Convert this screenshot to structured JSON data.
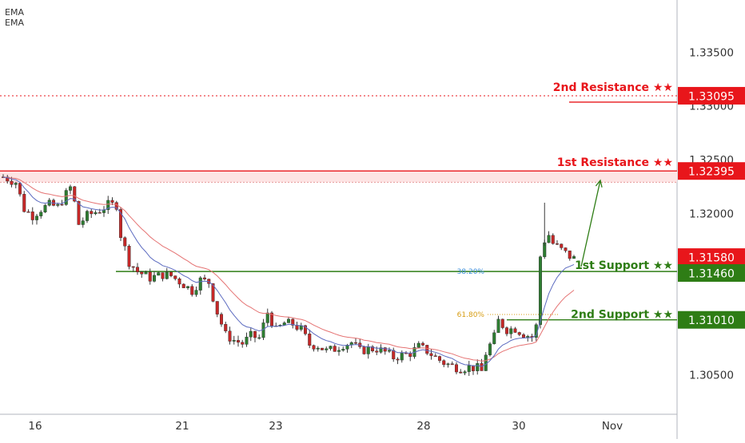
{
  "legend": {
    "indicator_1": "EMA",
    "indicator_2": "EMA"
  },
  "chart_data": {
    "type": "candlestick",
    "y_axis": {
      "range": [
        1.3031,
        1.338
      ],
      "tick_labels": [
        "1.33500",
        "1.33000",
        "1.32500",
        "1.32000",
        "1.31500",
        "1.31000",
        "1.30500"
      ],
      "tick_values": [
        1.335,
        1.33,
        1.325,
        1.32,
        1.315,
        1.31,
        1.305
      ]
    },
    "x_axis": {
      "tick_labels": [
        "16",
        "21",
        "23",
        "28",
        "30",
        "Nov"
      ]
    },
    "levels": [
      {
        "label": "2nd Resistance ★★",
        "price_label": "1.33095",
        "value": 1.33095,
        "color": "#e8161b",
        "style": "dotted"
      },
      {
        "label": "1st Resistance ★★",
        "price_label": "1.32395",
        "value": 1.32395,
        "color": "#e8161b",
        "style": "solid"
      },
      {
        "label": "1st Support ★★",
        "price_label": "1.31460",
        "value": 1.3146,
        "color": "#2e7d15",
        "style": "solid"
      },
      {
        "label": "2nd Support ★★",
        "price_label": "1.31010",
        "value": 1.3101,
        "color": "#2e7d15",
        "style": "solid"
      }
    ],
    "current_price": {
      "label": "1.31580",
      "value": 1.3158,
      "color": "#e8161b"
    },
    "fibonacci": [
      {
        "label": "38.20%",
        "value": 1.3146,
        "color": "#3b8ed8"
      },
      {
        "label": "61.80%",
        "value": 1.3106,
        "color": "#d79d13"
      }
    ],
    "resistance_zone": {
      "top": 1.32395,
      "bottom": 1.3229
    },
    "price_path": [
      [
        0,
        1.3234
      ],
      [
        3,
        1.3229
      ],
      [
        5,
        1.3204
      ],
      [
        7,
        1.3198
      ],
      [
        9,
        1.3204
      ],
      [
        11,
        1.3208
      ],
      [
        13,
        1.3206
      ],
      [
        15,
        1.3218
      ],
      [
        16,
        1.3224
      ],
      [
        17,
        1.321
      ],
      [
        18,
        1.319
      ],
      [
        20,
        1.3198
      ],
      [
        23,
        1.3203
      ],
      [
        25,
        1.3208
      ],
      [
        27,
        1.3208
      ],
      [
        28,
        1.318
      ],
      [
        30,
        1.3155
      ],
      [
        32,
        1.3146
      ],
      [
        35,
        1.314
      ],
      [
        38,
        1.3143
      ],
      [
        40,
        1.3142
      ],
      [
        43,
        1.3134
      ],
      [
        45,
        1.3128
      ],
      [
        47,
        1.3138
      ],
      [
        49,
        1.3136
      ],
      [
        51,
        1.3108
      ],
      [
        53,
        1.3087
      ],
      [
        55,
        1.3082
      ],
      [
        57,
        1.3079
      ],
      [
        59,
        1.3086
      ],
      [
        61,
        1.3084
      ],
      [
        63,
        1.3108
      ],
      [
        65,
        1.3091
      ],
      [
        67,
        1.3098
      ],
      [
        69,
        1.3097
      ],
      [
        71,
        1.3092
      ],
      [
        73,
        1.3078
      ],
      [
        75,
        1.3077
      ],
      [
        77,
        1.3072
      ],
      [
        79,
        1.3074
      ],
      [
        81,
        1.3078
      ],
      [
        83,
        1.308
      ],
      [
        85,
        1.3072
      ],
      [
        87,
        1.3074
      ],
      [
        89,
        1.3074
      ],
      [
        91,
        1.3071
      ],
      [
        93,
        1.3066
      ],
      [
        95,
        1.3068
      ],
      [
        97,
        1.307
      ],
      [
        99,
        1.3076
      ],
      [
        101,
        1.3072
      ],
      [
        103,
        1.3066
      ],
      [
        105,
        1.3061
      ],
      [
        107,
        1.3058
      ],
      [
        109,
        1.3056
      ],
      [
        111,
        1.3057
      ],
      [
        113,
        1.3056
      ],
      [
        114,
        1.3053
      ],
      [
        115,
        1.307
      ],
      [
        117,
        1.3085
      ],
      [
        118,
        1.31
      ],
      [
        120,
        1.3092
      ],
      [
        122,
        1.3093
      ],
      [
        124,
        1.3088
      ],
      [
        126,
        1.3085
      ],
      [
        127,
        1.3095
      ],
      [
        128,
        1.316
      ],
      [
        129,
        1.3175
      ],
      [
        130,
        1.318
      ],
      [
        131,
        1.3172
      ],
      [
        133,
        1.3166
      ],
      [
        135,
        1.316
      ],
      [
        136,
        1.3158
      ]
    ],
    "projection": {
      "from": [
        136,
        1.3158
      ],
      "to": [
        142,
        1.3233
      ]
    }
  }
}
